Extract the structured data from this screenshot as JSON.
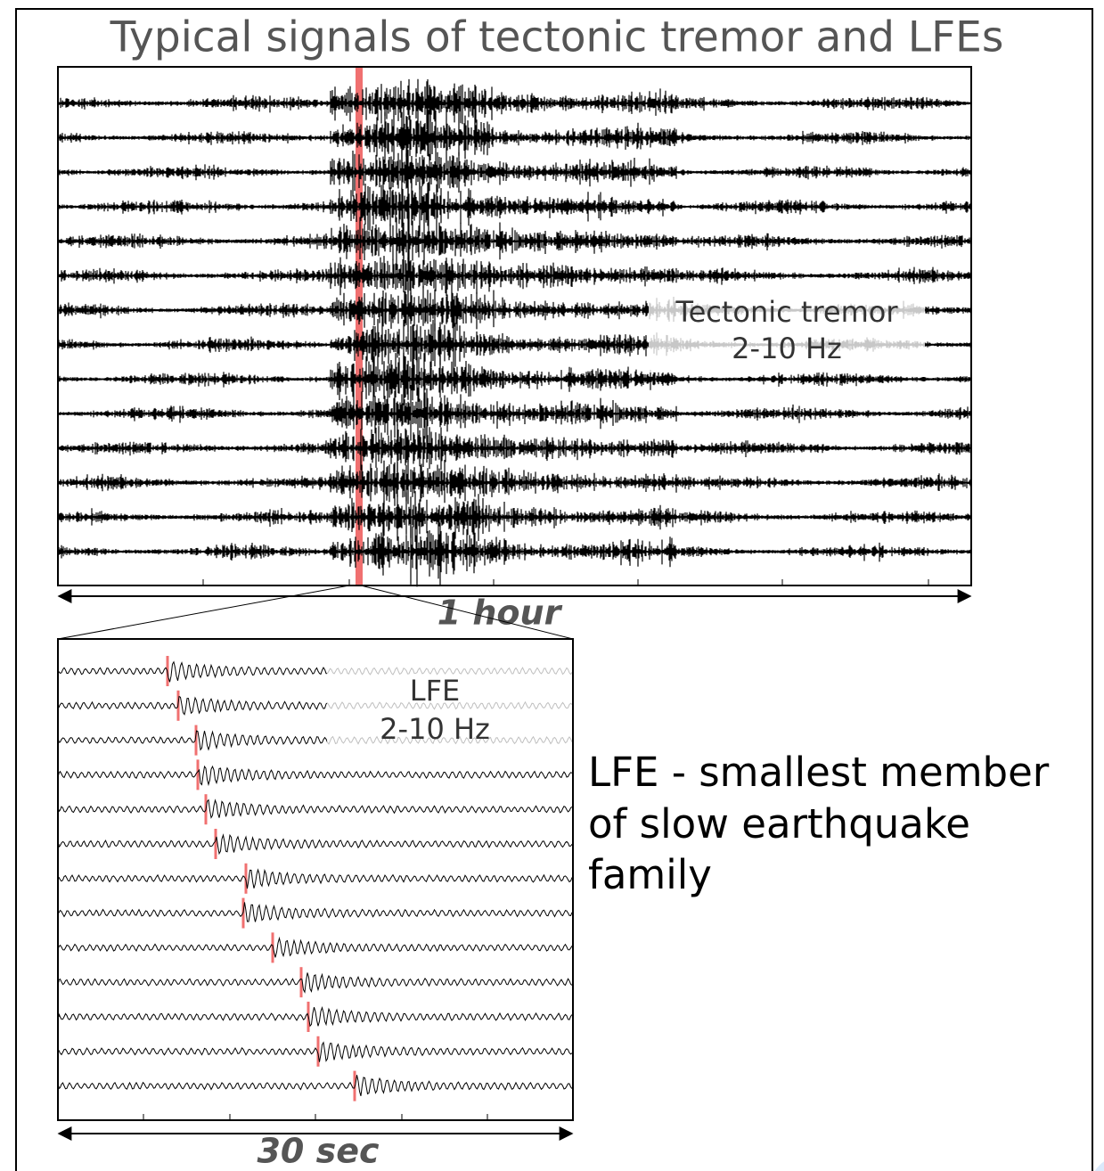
{
  "title": "Typical signals of tectonic tremor and LFEs",
  "top_panel": {
    "label_lines": [
      "Tectonic tremor",
      "2-10 Hz"
    ],
    "scale_label": "1 hour"
  },
  "bottom_panel": {
    "label_lines": [
      "LFE",
      "2-10 Hz"
    ],
    "scale_label": "30 sec"
  },
  "caption_lines": [
    "LFE - smallest member",
    "of slow earthquake",
    "family"
  ]
}
